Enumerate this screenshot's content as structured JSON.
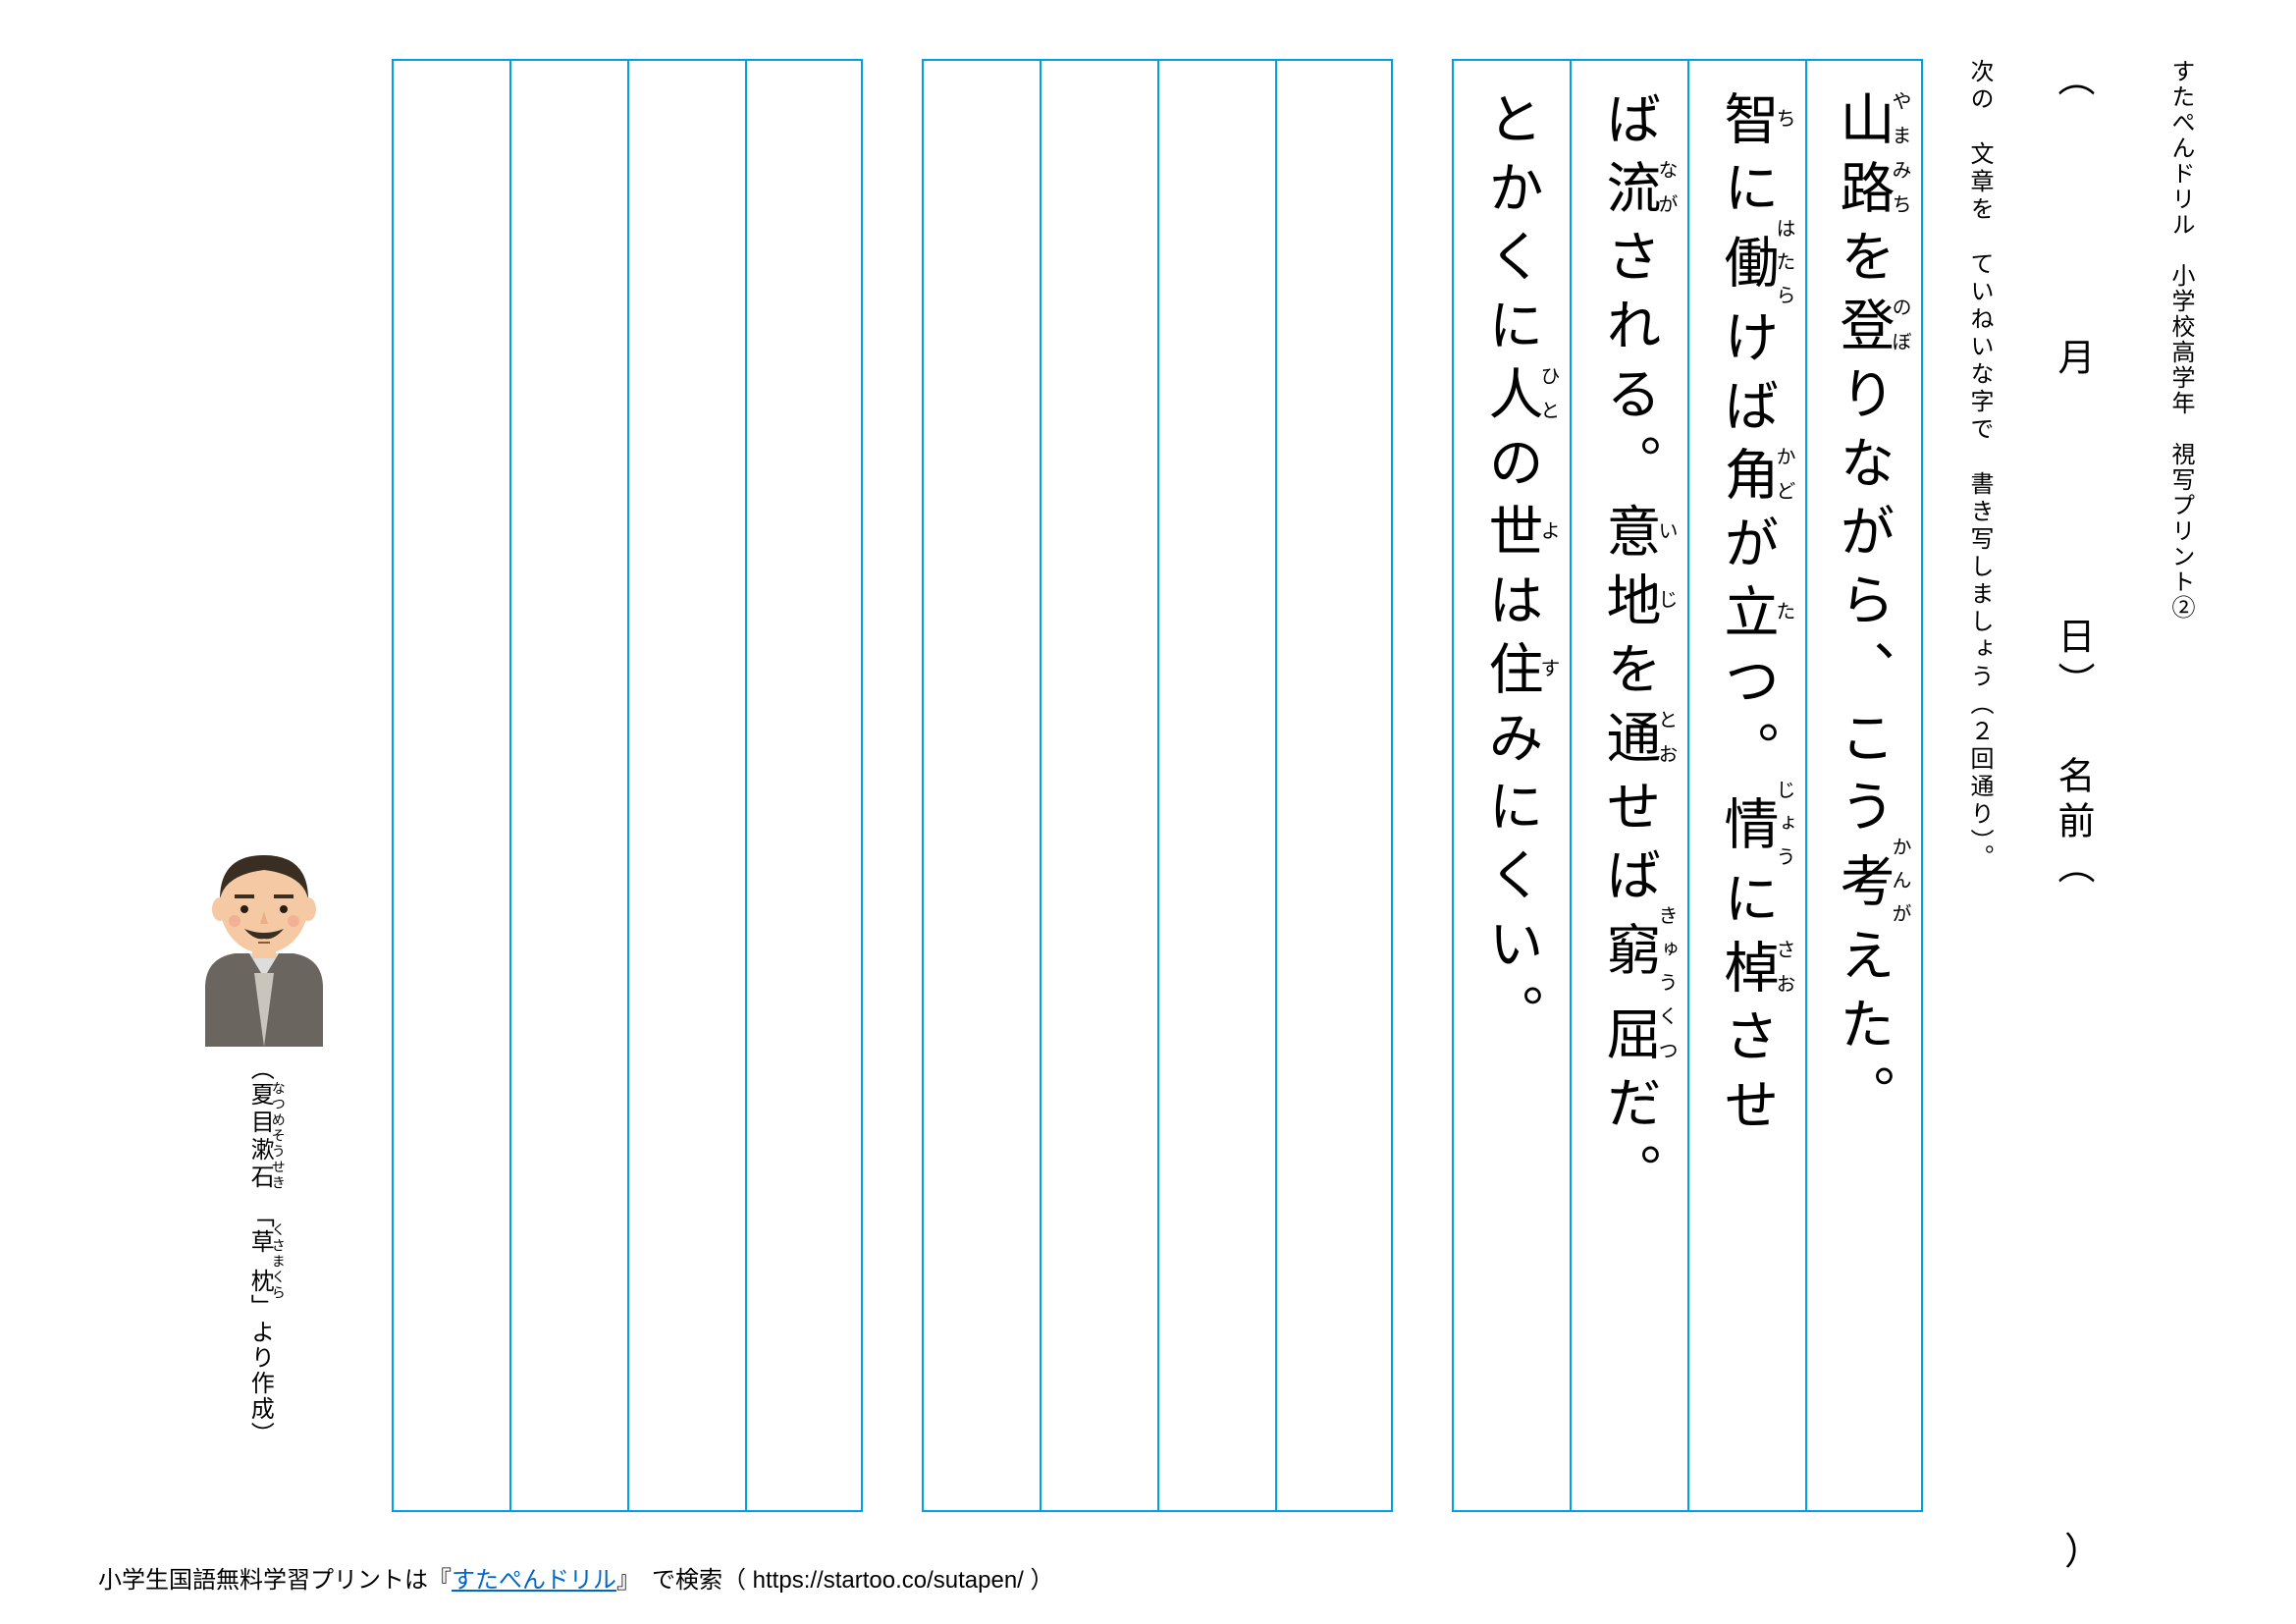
{
  "header": {
    "series_title": "すたぺんドリル　小学校高学年　視写プリント②",
    "date_label_open": "（",
    "month_label": "月",
    "day_label": "日）",
    "name_label": "名前（",
    "name_close": "）",
    "instruction": "次の　文章を　ていねいな字で　書き写しましょう（２回通り）。"
  },
  "passage": {
    "lines": [
      {
        "segments": [
          {
            "base": "山",
            "ruby": "やま"
          },
          {
            "base": "路",
            "ruby": "みち"
          },
          {
            "text": "を"
          },
          {
            "base": "登",
            "ruby": "のぼ"
          },
          {
            "text": "りながら、こう"
          },
          {
            "base": "考",
            "ruby": "かんが"
          },
          {
            "text": "えた。"
          }
        ]
      },
      {
        "segments": [
          {
            "base": "智",
            "ruby": "ち"
          },
          {
            "text": "に"
          },
          {
            "base": "働",
            "ruby": "はたら"
          },
          {
            "text": "けば"
          },
          {
            "base": "角",
            "ruby": "かど"
          },
          {
            "text": "が"
          },
          {
            "base": "立",
            "ruby": "た"
          },
          {
            "text": "つ。"
          },
          {
            "base": "情",
            "ruby": "じょう"
          },
          {
            "text": "に"
          },
          {
            "base": "棹",
            "ruby": "さお"
          },
          {
            "text": "させ"
          }
        ]
      },
      {
        "segments": [
          {
            "text": "ば"
          },
          {
            "base": "流",
            "ruby": "なが"
          },
          {
            "text": "される。"
          },
          {
            "base": "意",
            "ruby": "い"
          },
          {
            "base": "地",
            "ruby": "じ"
          },
          {
            "text": "を"
          },
          {
            "base": "通",
            "ruby": "とお"
          },
          {
            "text": "せば"
          },
          {
            "base": "窮",
            "ruby": "きゅう"
          },
          {
            "base": "屈",
            "ruby": "くつ"
          },
          {
            "text": "だ。"
          }
        ]
      },
      {
        "segments": [
          {
            "text": "とかくに"
          },
          {
            "base": "人",
            "ruby": "ひと"
          },
          {
            "text": "の"
          },
          {
            "base": "世",
            "ruby": "よ"
          },
          {
            "text": "は"
          },
          {
            "base": "住",
            "ruby": "す"
          },
          {
            "text": "みにくい。"
          }
        ]
      }
    ]
  },
  "practice": {
    "block1_cols": 4,
    "block2_cols": 4
  },
  "source": {
    "author_base": "夏目漱石",
    "author_ruby": "なつめそうせき",
    "work_base": "草枕",
    "work_ruby": "くさまくら",
    "open": "（",
    "mid": "「",
    "mid2": "」より作成）"
  },
  "footer": {
    "text_before": "小学生国語無料学習プリントは『",
    "link_text": "すたぺんドリル",
    "text_after": "』　で検索（ https://startoo.co/sutapen/ ）"
  },
  "colors": {
    "border": "#00a0e9",
    "link": "#0066cc",
    "bg": "#ffffff"
  }
}
